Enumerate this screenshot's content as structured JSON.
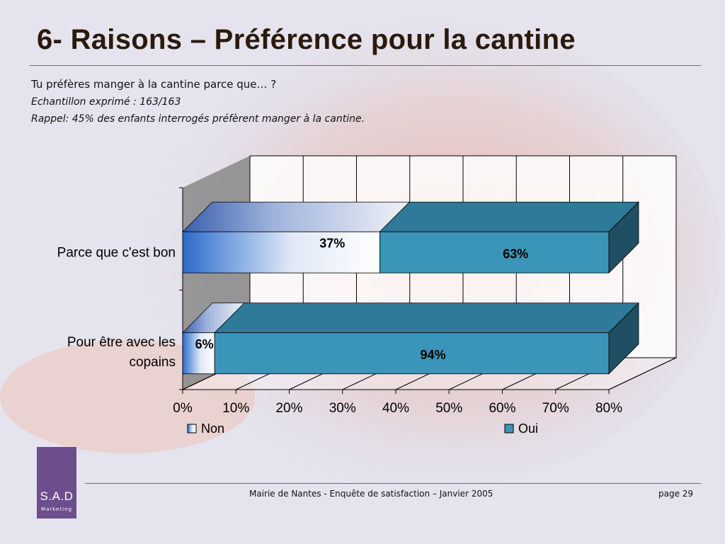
{
  "title": "6- Raisons – Préférence pour la cantine",
  "intro": {
    "question": "Tu préfères manger à la cantine parce que… ?",
    "sample": "Echantillon exprimé : 163/163",
    "reminder": "Rappel: 45% des enfants interrogés préfèrent manger à la cantine."
  },
  "chart_data": {
    "type": "bar",
    "orientation": "horizontal",
    "stacked": "percent",
    "categories": [
      "Parce que c'est bon",
      "Pour être avec les copains"
    ],
    "category_lines": [
      [
        "Parce que c'est bon"
      ],
      [
        "Pour être avec les",
        "copains"
      ]
    ],
    "series": [
      {
        "name": "Non",
        "values": [
          37,
          6
        ]
      },
      {
        "name": "Oui",
        "values": [
          63,
          94
        ]
      }
    ],
    "data_labels": [
      [
        "37%",
        "6%"
      ],
      [
        "63%",
        "94%"
      ]
    ],
    "xticks": [
      "0%",
      "10%",
      "20%",
      "30%",
      "40%",
      "50%",
      "60%",
      "70%",
      "80%"
    ],
    "xlim": [
      0,
      80
    ],
    "grid": true,
    "legend": "bottom",
    "colors": {
      "non_dark": "#2e69c8",
      "non_light": "#ffffff",
      "oui_front": "#3a95b8",
      "oui_top": "#2f7a98",
      "oui_side": "#1e4f63",
      "wall_side": "#888888"
    }
  },
  "logo": {
    "brand": "S.A.D",
    "sub": "Marketing"
  },
  "footer": {
    "center": "Mairie de Nantes - Enquête de satisfaction – Janvier 2005",
    "page": "page 29"
  }
}
